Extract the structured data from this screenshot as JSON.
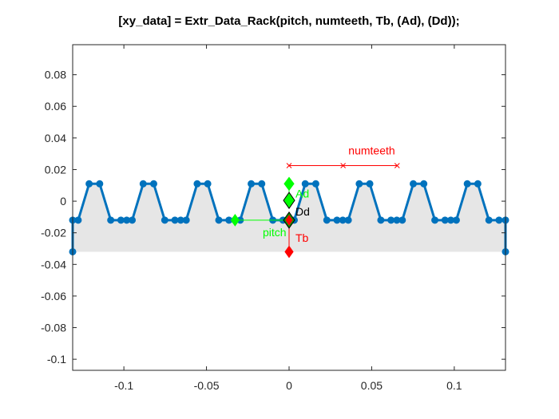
{
  "chart_data": {
    "type": "line",
    "title": "[xy_data] = Extr_Data_Rack(pitch, numteeth, Tb, (Ad), (Dd));",
    "xlabel": "",
    "ylabel": "",
    "xlim": [
      -0.131,
      0.131
    ],
    "ylim": [
      -0.107,
      0.099
    ],
    "xticks": [
      -0.1,
      -0.05,
      0,
      0.05,
      0.1
    ],
    "xtick_labels": [
      "-0.1",
      "-0.05",
      "0",
      "0.05",
      "0.1"
    ],
    "yticks": [
      0.08,
      0.06,
      0.04,
      0.02,
      0,
      -0.02,
      -0.04,
      -0.06,
      -0.08,
      -0.1
    ],
    "ytick_labels": [
      "0.08",
      "0.06",
      "0.04",
      "0.02",
      "0",
      "-0.02",
      "-0.04",
      "-0.06",
      "-0.08",
      "-0.1"
    ],
    "grid": false,
    "colors": {
      "profile": "#0072BD",
      "fill": "#E6E6E6",
      "annotation_red": "#FF0000",
      "annotation_green": "#00FF00",
      "dark_red": "#D95319"
    },
    "profile_params": {
      "pitch": 0.0327,
      "period_start": -0.131,
      "periods": 8,
      "tip_y": 0.011,
      "root_y": -0.012,
      "base_y": -0.032
    },
    "annotations": {
      "numteeth": {
        "label": "numteeth",
        "x": [
          0,
          0.0327,
          0.0654
        ],
        "y": 0.0225
      },
      "pitch": {
        "label": "pitch",
        "x_start": -0.0327,
        "x_end": 0,
        "y": -0.012
      },
      "Tb": {
        "label": "Tb",
        "x": 0,
        "y_top": -0.012,
        "y_bottom": -0.032
      },
      "Ad": {
        "label": "Ad",
        "x": 0,
        "y": 0.011
      },
      "Dd": {
        "label": "Dd",
        "x": 0,
        "y": 0.0005
      }
    }
  }
}
